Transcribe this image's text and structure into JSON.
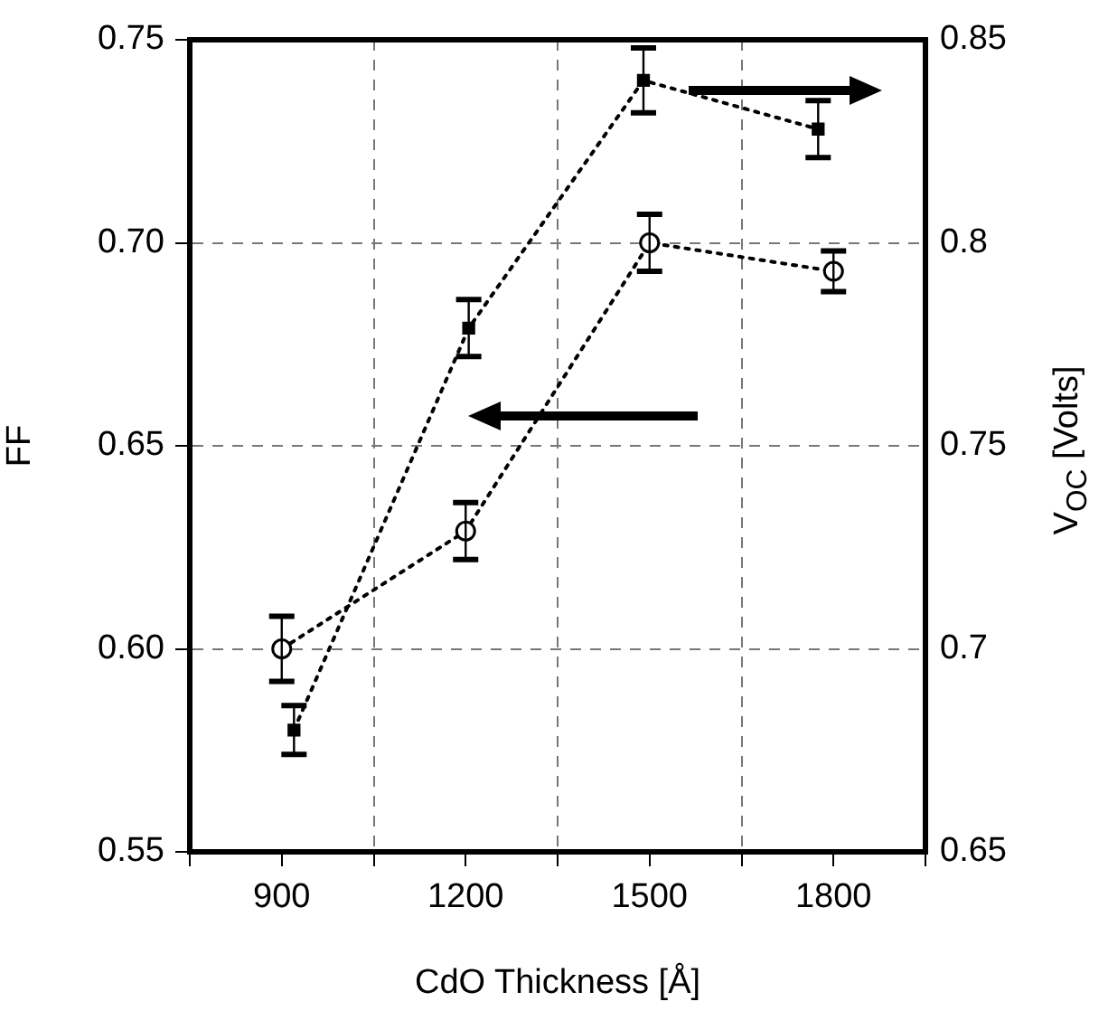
{
  "chart_data": {
    "type": "line",
    "xlabel": "CdO Thickness [Å]",
    "ylabel": "FF",
    "y2label": "V$_{OC}$ [Volts]",
    "xlim": [
      750,
      1950
    ],
    "xticks": [
      {
        "value": 750,
        "label": null
      },
      900,
      {
        "value": 1050,
        "label": null
      },
      1200,
      {
        "value": 1350,
        "label": null
      },
      1500,
      {
        "value": 1650,
        "label": null
      },
      1800,
      {
        "value": 1950,
        "label": null
      }
    ],
    "ylim": [
      0.55,
      0.75
    ],
    "yticks": [
      {
        "value": 0.55,
        "label": "0.55"
      },
      {
        "value": 0.6,
        "label": "0.60"
      },
      {
        "value": 0.65,
        "label": "0.65"
      },
      {
        "value": 0.7,
        "label": "0.70"
      },
      {
        "value": 0.75,
        "label": "0.75"
      }
    ],
    "y2lim": [
      0.65,
      0.85
    ],
    "y2ticks": [
      0.65,
      0.7,
      0.75,
      0.8,
      0.85
    ],
    "grid": true,
    "line_style": "dotted",
    "legend": false,
    "series": [
      {
        "color": "#000000",
        "marker": "circle",
        "x": [
          900,
          1200,
          1500,
          1800
        ],
        "values": [
          0.6,
          0.629,
          0.7,
          0.693
        ],
        "errors": [
          0.008,
          0.007,
          0.007,
          0.005
        ]
      },
      {
        "color": "#000000",
        "marker": "square",
        "axis": "y2",
        "x": [
          920,
          1205,
          1490,
          1775
        ],
        "values": [
          0.68,
          0.779,
          0.84,
          0.828
        ],
        "errors": [
          0.006,
          0.007,
          0.008,
          0.007
        ]
      }
    ]
  }
}
